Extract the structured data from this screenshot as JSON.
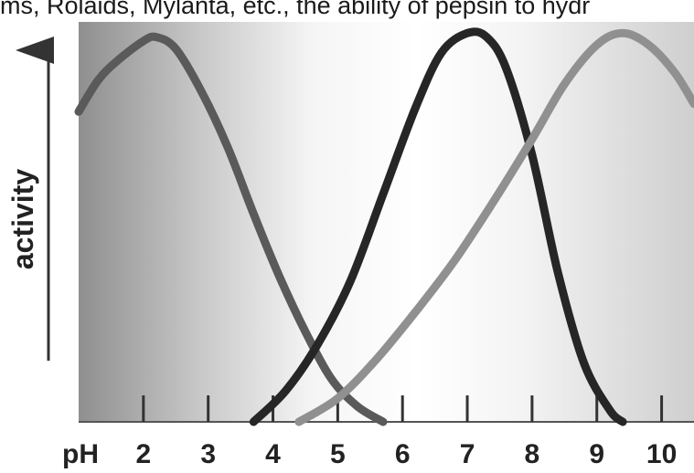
{
  "page_text": {
    "top_fragment": "ms, Rolaids, Mylanta, etc., the ability of pepsin to hydr"
  },
  "chart_data": {
    "type": "line",
    "xlabel": "pH",
    "ylabel": "activity",
    "xlim": [
      1.0,
      10.5
    ],
    "ylim": [
      0,
      1
    ],
    "x_ticks": [
      2,
      3,
      4,
      5,
      6,
      7,
      8,
      9,
      10
    ],
    "tick_labels": [
      "2",
      "3",
      "4",
      "5",
      "6",
      "7",
      "8",
      "9",
      "10"
    ],
    "grid": false,
    "legend": "none",
    "series": [
      {
        "color": "#5a5a5a",
        "x": [
          1.0,
          1.3,
          1.6,
          2.0,
          2.2,
          2.5,
          2.9,
          3.3,
          3.7,
          4.1,
          4.5,
          4.9,
          5.3,
          5.7
        ],
        "y": [
          0.79,
          0.87,
          0.92,
          0.97,
          0.98,
          0.95,
          0.84,
          0.7,
          0.53,
          0.37,
          0.23,
          0.11,
          0.04,
          0.0
        ]
      },
      {
        "color": "#262626",
        "x": [
          3.7,
          4.2,
          4.7,
          5.2,
          5.7,
          6.2,
          6.6,
          7.0,
          7.3,
          7.6,
          8.0,
          8.4,
          8.8,
          9.2,
          9.4
        ],
        "y": [
          0.0,
          0.08,
          0.2,
          0.36,
          0.58,
          0.8,
          0.94,
          0.99,
          0.98,
          0.9,
          0.68,
          0.38,
          0.15,
          0.03,
          0.0
        ]
      },
      {
        "color": "#909090",
        "x": [
          4.4,
          5.0,
          5.6,
          6.2,
          6.8,
          7.4,
          8.0,
          8.5,
          9.0,
          9.4,
          9.8,
          10.2,
          10.5
        ],
        "y": [
          0.0,
          0.06,
          0.16,
          0.28,
          0.41,
          0.56,
          0.72,
          0.86,
          0.96,
          0.99,
          0.96,
          0.89,
          0.81
        ]
      }
    ]
  }
}
